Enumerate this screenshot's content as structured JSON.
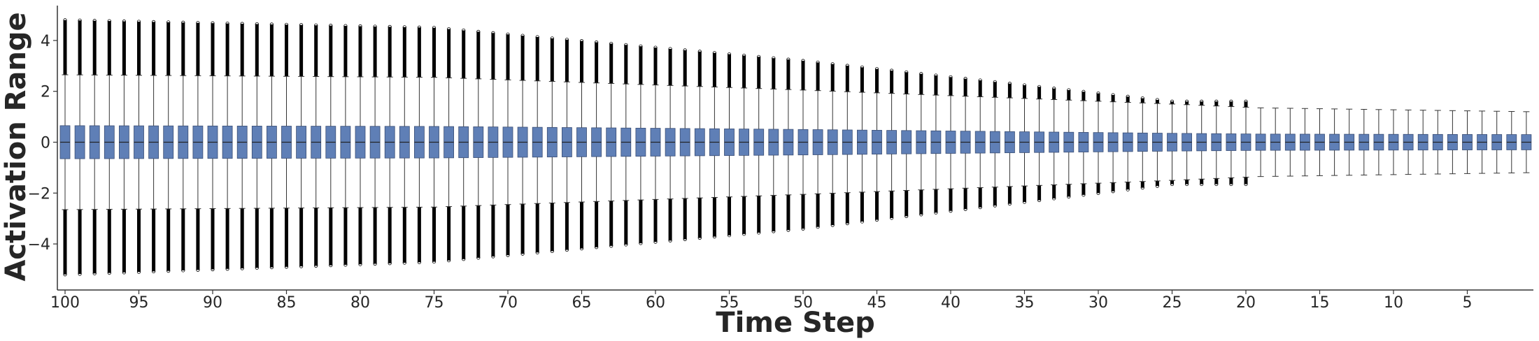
{
  "chart_data": {
    "type": "box",
    "xlabel": "Time Step",
    "ylabel": "Activation Range",
    "x_range": [
      100,
      1
    ],
    "x_ticks": [
      100,
      95,
      90,
      85,
      80,
      75,
      70,
      65,
      60,
      55,
      50,
      45,
      40,
      35,
      30,
      25,
      20,
      15,
      10,
      5
    ],
    "x_tick_labels": [
      "100",
      "95",
      "90",
      "85",
      "80",
      "75",
      "70",
      "65",
      "60",
      "55",
      "50",
      "45",
      "40",
      "35",
      "30",
      "25",
      "20",
      "15",
      "10",
      "5"
    ],
    "ylim": [
      -5.7,
      5.3
    ],
    "y_ticks": [
      4,
      2,
      0,
      -2,
      -4
    ],
    "y_tick_labels": [
      "4",
      "2",
      "0",
      "−2",
      "−4"
    ],
    "grid": false,
    "colors": {
      "box_fill": "#5f7fb6",
      "box_edge": "#3a4e75",
      "median": "#222222",
      "whisker": "#333333",
      "outlier": "#000000"
    },
    "series_summary": [
      {
        "x": 100,
        "q1": -0.65,
        "median": 0.0,
        "q3": 0.65,
        "whisker_low": -2.65,
        "whisker_high": 2.65,
        "outlier_min": -5.2,
        "outlier_max": 4.8
      },
      {
        "x": 75,
        "q1": -0.62,
        "median": 0.0,
        "q3": 0.62,
        "whisker_low": -2.55,
        "whisker_high": 2.55,
        "outlier_min": -4.7,
        "outlier_max": 4.5
      },
      {
        "x": 50,
        "q1": -0.5,
        "median": 0.0,
        "q3": 0.5,
        "whisker_low": -2.05,
        "whisker_high": 2.05,
        "outlier_min": -3.4,
        "outlier_max": 3.2
      },
      {
        "x": 25,
        "q1": -0.35,
        "median": 0.0,
        "q3": 0.35,
        "whisker_low": -1.5,
        "whisker_high": 1.5,
        "outlier_min": -1.65,
        "outlier_max": 1.6
      },
      {
        "x": 19,
        "q1": -0.32,
        "median": 0.0,
        "q3": 0.32,
        "whisker_low": -1.35,
        "whisker_high": 1.35,
        "outlier_min": null,
        "outlier_max": null
      },
      {
        "x": 1,
        "q1": -0.3,
        "median": 0.0,
        "q3": 0.3,
        "whisker_low": -1.2,
        "whisker_high": 1.2,
        "outlier_min": null,
        "outlier_max": null
      }
    ],
    "outliers_until_step": 20
  }
}
